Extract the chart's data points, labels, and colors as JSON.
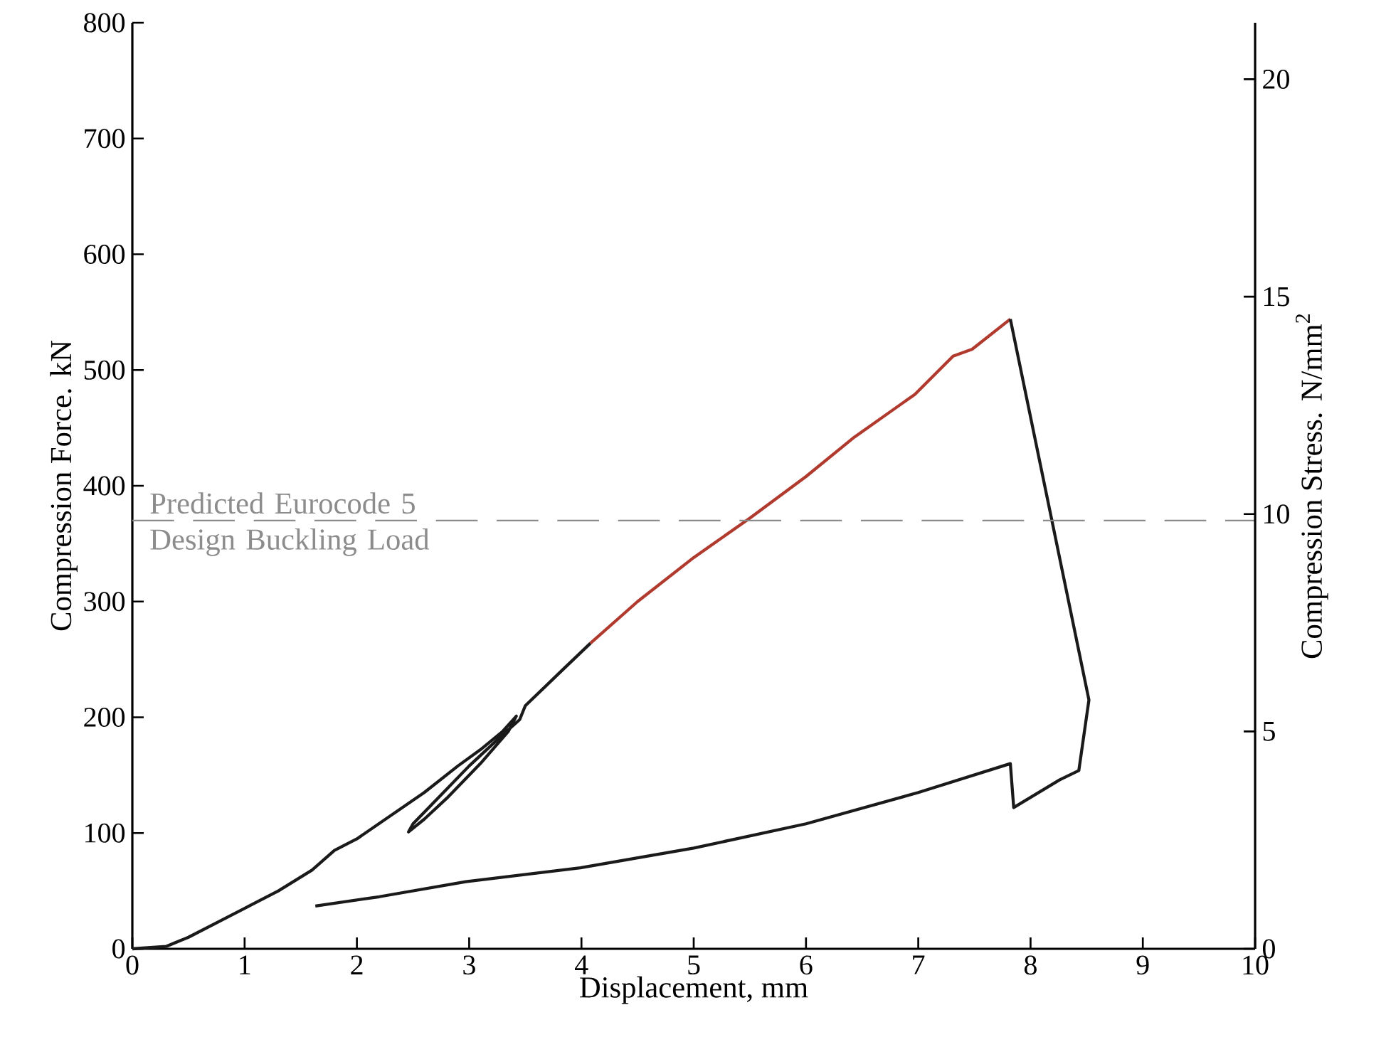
{
  "chart_data": {
    "type": "line",
    "xlabel": "Displacement, mm",
    "ylabel": "Compression Force. kN",
    "y2label": "Compression Stress. N/mm$^{2}$",
    "xlim": [
      0,
      10
    ],
    "xticks": [
      0,
      1,
      2,
      3,
      4,
      5,
      6,
      7,
      8,
      9,
      10
    ],
    "ylim": [
      0,
      800
    ],
    "yticks": [
      0,
      100,
      200,
      300,
      400,
      500,
      600,
      700,
      800
    ],
    "y2lim": [
      0,
      21.3
    ],
    "y2ticks": [
      0,
      5,
      10,
      15,
      20
    ],
    "ref_lines": [
      {
        "axis": "y",
        "value": 370,
        "label": "Predicted Eurocode 5 Design Buckling Load",
        "color": "#8c8c8c",
        "line_style": "dashed"
      }
    ],
    "series": [
      {
        "color": "#1a1a1a",
        "x": [
          0,
          0.3,
          0.5,
          0.8,
          1.0,
          1.3,
          1.6,
          1.8,
          2.0,
          2.3,
          2.6,
          2.9,
          3.1,
          3.3,
          3.42,
          3.35,
          3.1,
          2.8,
          2.6,
          2.46,
          2.5,
          2.7,
          3.0,
          3.3,
          3.45,
          3.5,
          3.8,
          4.08
        ],
        "values": [
          0,
          2,
          10,
          25,
          35,
          50,
          68,
          85,
          95,
          115,
          135,
          158,
          172,
          188,
          201,
          188,
          160,
          130,
          112,
          101,
          108,
          128,
          158,
          185,
          198,
          210,
          238,
          264
        ]
      },
      {
        "color": "#b03a2e",
        "x": [
          4.08,
          4.5,
          5.0,
          5.5,
          6.0,
          6.43,
          6.97,
          7.31,
          7.48,
          7.82
        ],
        "values": [
          264,
          300,
          338,
          372,
          408,
          442,
          479,
          512,
          518,
          544
        ]
      },
      {
        "color": "#1a1a1a",
        "x": [
          7.82,
          8.52,
          8.43,
          8.26,
          7.85,
          7.82,
          7.0,
          6.0,
          5.0,
          3.99,
          2.97,
          2.2,
          1.63
        ],
        "values": [
          544,
          215,
          154,
          146,
          122,
          160,
          135,
          108,
          87,
          70,
          58,
          45,
          37
        ]
      }
    ]
  }
}
